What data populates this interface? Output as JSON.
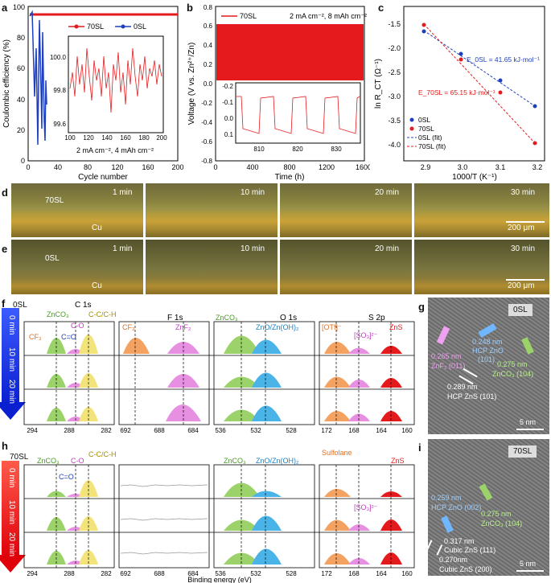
{
  "panels": {
    "a": "a",
    "b": "b",
    "c": "c",
    "d": "d",
    "e": "e",
    "f": "f",
    "g": "g",
    "h": "h",
    "i": "i"
  },
  "panel_a": {
    "ylabel": "Coulombic efficiency (%)",
    "xlabel": "Cycle number",
    "legend": [
      "70SL",
      "0SL"
    ],
    "condition": "2 mA cm⁻², 4 mAh cm⁻²",
    "xticks": [
      "0",
      "40",
      "80",
      "120",
      "160",
      "200"
    ],
    "yticks": [
      "0",
      "20",
      "40",
      "60",
      "80",
      "100"
    ],
    "inset_yticks": [
      "99.6",
      "99.8",
      "100.0"
    ],
    "inset_xticks": [
      "100",
      "120",
      "140",
      "160",
      "180",
      "200"
    ]
  },
  "panel_b": {
    "ylabel": "Voltage (V vs. Zn²⁺/Zn)",
    "xlabel": "Time (h)",
    "legend": "70SL",
    "condition": "2 mA cm⁻², 8 mAh cm⁻²",
    "xticks": [
      "0",
      "400",
      "800",
      "1200",
      "1600"
    ],
    "yticks": [
      "-0.8",
      "-0.6",
      "-0.4",
      "-0.2",
      "0.0",
      "0.2",
      "0.4",
      "0.6",
      "0.8"
    ],
    "inset_yticks": [
      "-0.2",
      "-0.1",
      "0.0",
      "0.1"
    ],
    "inset_xticks": [
      "810",
      "820",
      "830"
    ]
  },
  "panel_c": {
    "ylabel": "ln R_CT (Ω⁻¹)",
    "xlabel": "1000/T (K⁻¹)",
    "e0": "E_0SL = 41.65 kJ·mol⁻¹",
    "e70": "E_70SL = 65.15 kJ·mol⁻¹",
    "legend": [
      "0SL",
      "70SL",
      "0SL (fit)",
      "70SL (fit)"
    ],
    "xticks": [
      "2.9",
      "3.0",
      "3.1",
      "3.2"
    ],
    "yticks": [
      "-1.5",
      "-2.0",
      "-2.5",
      "-3.0",
      "-3.5",
      "-4.0"
    ]
  },
  "panel_d": {
    "sample": "70SL",
    "substrate": "Cu",
    "times": [
      "1 min",
      "10 min",
      "20 min",
      "30 min"
    ],
    "scale": "200 μm"
  },
  "panel_e": {
    "sample": "0SL",
    "substrate": "Cu",
    "times": [
      "1 min",
      "10 min",
      "20 min",
      "30 min"
    ],
    "scale": "200 μm"
  },
  "panel_f": {
    "sample": "0SL",
    "times": [
      "0 min",
      "10 min",
      "20 min"
    ],
    "regions": [
      "C 1s",
      "F 1s",
      "O 1s",
      "S 2p"
    ],
    "c_labels": [
      "ZnCO₃",
      "C-O",
      "C-C/C-H",
      "C=O",
      "CF₃"
    ],
    "f_labels": [
      "CF₃",
      "ZnF₂"
    ],
    "o_labels": [
      "ZnCO₃",
      "ZnO/Zn(OH)₂"
    ],
    "s_labels": [
      "[OTf]⁻",
      "[SO₃]²⁻",
      "ZnS"
    ],
    "xticks_c": [
      "294",
      "288",
      "282"
    ],
    "xticks_f": [
      "692",
      "688",
      "684"
    ],
    "xticks_o": [
      "536",
      "532",
      "528"
    ],
    "xticks_s": [
      "172",
      "168",
      "164",
      "160"
    ]
  },
  "panel_h": {
    "sample": "70SL",
    "times": [
      "0 min",
      "10 min",
      "20 min"
    ],
    "c_labels": [
      "ZnCO₃",
      "C-O",
      "C-C/C-H",
      "C=O"
    ],
    "o_labels": [
      "ZnCO₃",
      "ZnO/Zn(OH)₂"
    ],
    "s_labels": [
      "Sulfolane",
      "ZnS",
      "[SO₃]²⁻"
    ],
    "xlabel": "Binding energy (eV)",
    "xticks_c": [
      "294",
      "288",
      "282"
    ],
    "xticks_f": [
      "692",
      "688",
      "684"
    ],
    "xticks_o": [
      "536",
      "532",
      "528"
    ],
    "xticks_s": [
      "172",
      "168",
      "164",
      "160"
    ]
  },
  "panel_g": {
    "tag": "0SL",
    "labels": [
      "0.265 nm",
      "ZnF₂ (011)",
      "0.248 nm",
      "HCP ZnO",
      "(101)",
      "0.275 nm",
      "ZnCO₃ (104)",
      "0.289 nm",
      "HCP ZnS (101)"
    ],
    "scale": "5 nm"
  },
  "panel_i": {
    "tag": "70SL",
    "labels": [
      "0.259 nm",
      "HCP ZnO (002)",
      "0.275 nm",
      "ZnCO₃ (104)",
      "0.317 nm",
      "Cubic ZnS (111)",
      "0.270nm",
      "Cubic ZnS (200)"
    ],
    "scale": "5 nm"
  },
  "colors": {
    "red": "#e41a1c",
    "blue": "#1f3fbf",
    "green": "#9bd36a",
    "orange": "#f4a261",
    "pink": "#e78fe0",
    "cyan": "#4ab3e8",
    "yellow": "#f2e37a"
  }
}
